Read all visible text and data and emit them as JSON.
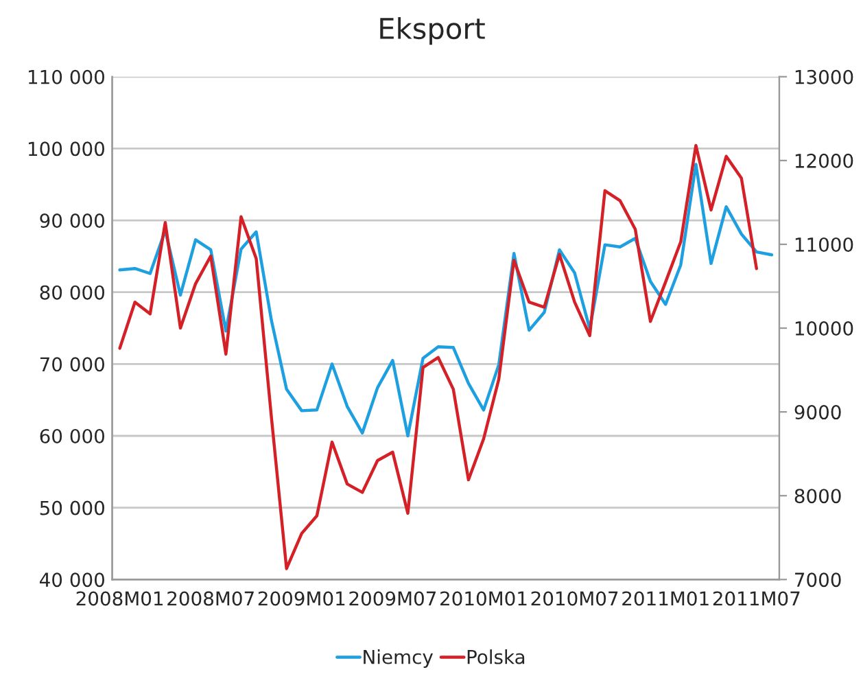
{
  "chart_data": {
    "type": "line",
    "title": "Eksport",
    "categories": [
      "2008M01",
      null,
      null,
      null,
      null,
      null,
      "2008M07",
      null,
      null,
      null,
      null,
      null,
      "2009M01",
      null,
      null,
      null,
      null,
      null,
      "2009M07",
      null,
      null,
      null,
      null,
      null,
      "2010M01",
      null,
      null,
      null,
      null,
      null,
      "2010M07",
      null,
      null,
      null,
      null,
      null,
      "2011M01",
      null,
      null,
      null,
      null,
      null,
      "2011M07",
      null
    ],
    "series": [
      {
        "name": "Niemcy",
        "color": "#1e9fe0",
        "values": [
          83100,
          83300,
          82600,
          88600,
          79600,
          87300,
          85900,
          74600,
          86000,
          88400,
          76100,
          66500,
          63500,
          63600,
          70000,
          64100,
          60400,
          66700,
          70500,
          60000,
          70800,
          72400,
          72300,
          67300,
          63600,
          69900,
          85400,
          74700,
          77200,
          85900,
          82700,
          74900,
          86600,
          86300,
          87500,
          81500,
          78300,
          83800,
          97800,
          84000,
          91900,
          88100,
          85600,
          85200
        ]
      },
      {
        "name": "Polska",
        "color": "#d42027",
        "axis": "y2",
        "values": [
          9760,
          10310,
          10170,
          11260,
          10000,
          10530,
          10860,
          9690,
          11330,
          10830,
          8940,
          7130,
          7550,
          7760,
          8640,
          8140,
          8040,
          8420,
          8520,
          7790,
          9530,
          9650,
          9270,
          8190,
          8680,
          9390,
          10810,
          10310,
          10250,
          10880,
          10310,
          9910,
          11640,
          11520,
          11180,
          10080,
          10550,
          11030,
          12180,
          11410,
          12050,
          11790,
          10710,
          null
        ]
      }
    ],
    "ylim": [
      40000,
      110000
    ],
    "yticks": [
      {
        "value": 40000,
        "label": "40 000"
      },
      {
        "value": 50000,
        "label": "50 000"
      },
      {
        "value": 60000,
        "label": "60 000"
      },
      {
        "value": 70000,
        "label": "70 000"
      },
      {
        "value": 80000,
        "label": "80 000"
      },
      {
        "value": 90000,
        "label": "90 000"
      },
      {
        "value": 100000,
        "label": "100 000"
      },
      {
        "value": 110000,
        "label": "110 000"
      }
    ],
    "y2lim": [
      7000,
      13000
    ],
    "y2ticks": [
      7000,
      8000,
      9000,
      10000,
      11000,
      12000,
      13000
    ],
    "grid": "y",
    "legend": "bottom",
    "marker": "none",
    "line_style": "solid"
  }
}
